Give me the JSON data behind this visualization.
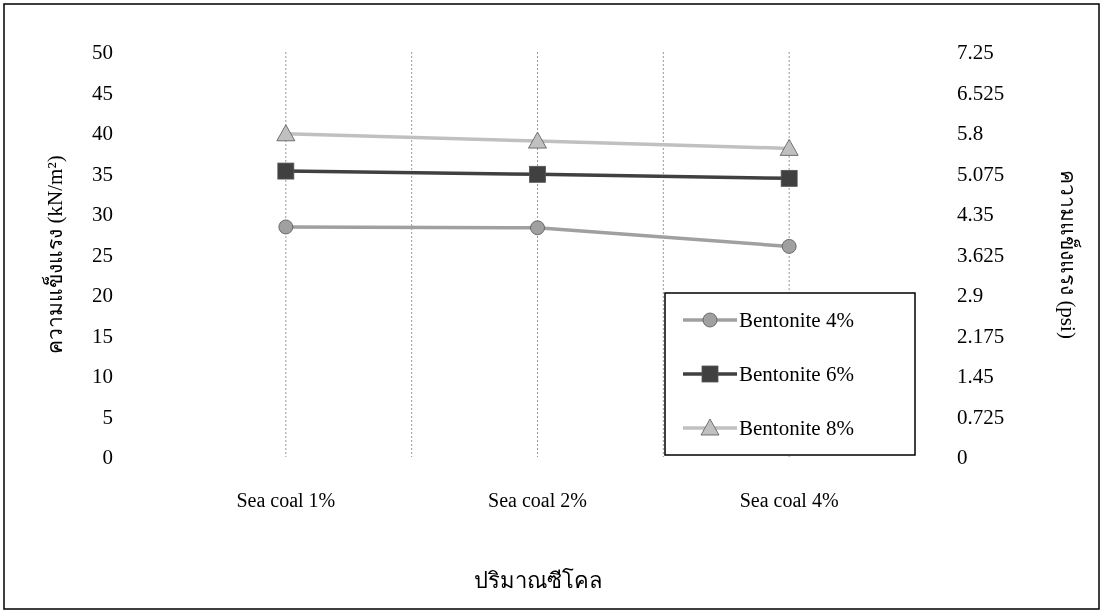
{
  "chart_data": {
    "type": "line",
    "xlabel": "ปริมาณซีโคล",
    "ylabel": "ความแข็งแรง (kN/m²)",
    "y2label": "ความแข็งแรง (psi)",
    "categories": [
      "Sea coal 1%",
      "Sea coal 2%",
      "Sea coal 4%"
    ],
    "series": [
      {
        "name": "Bentonite 4%",
        "color": "#a0a0a0",
        "marker": "circle",
        "values": [
          28.4,
          28.3,
          26.0
        ]
      },
      {
        "name": "Bentonite 6%",
        "color": "#404040",
        "marker": "square",
        "values": [
          35.3,
          34.9,
          34.4
        ]
      },
      {
        "name": "Bentonite 8%",
        "color": "#c0c0c0",
        "marker": "triangle",
        "values": [
          39.9,
          39.0,
          38.1
        ]
      }
    ],
    "ylim": [
      0,
      50
    ],
    "yticks": [
      0,
      5,
      10,
      15,
      20,
      25,
      30,
      35,
      40,
      45,
      50
    ],
    "y2lim": [
      0,
      7.25
    ],
    "y2ticks": [
      0,
      0.725,
      1.45,
      2.175,
      2.9,
      3.625,
      4.35,
      5.075,
      5.8,
      6.525,
      7.25
    ],
    "grid": "x",
    "legend": "bottom right",
    "line_style": "solid"
  }
}
